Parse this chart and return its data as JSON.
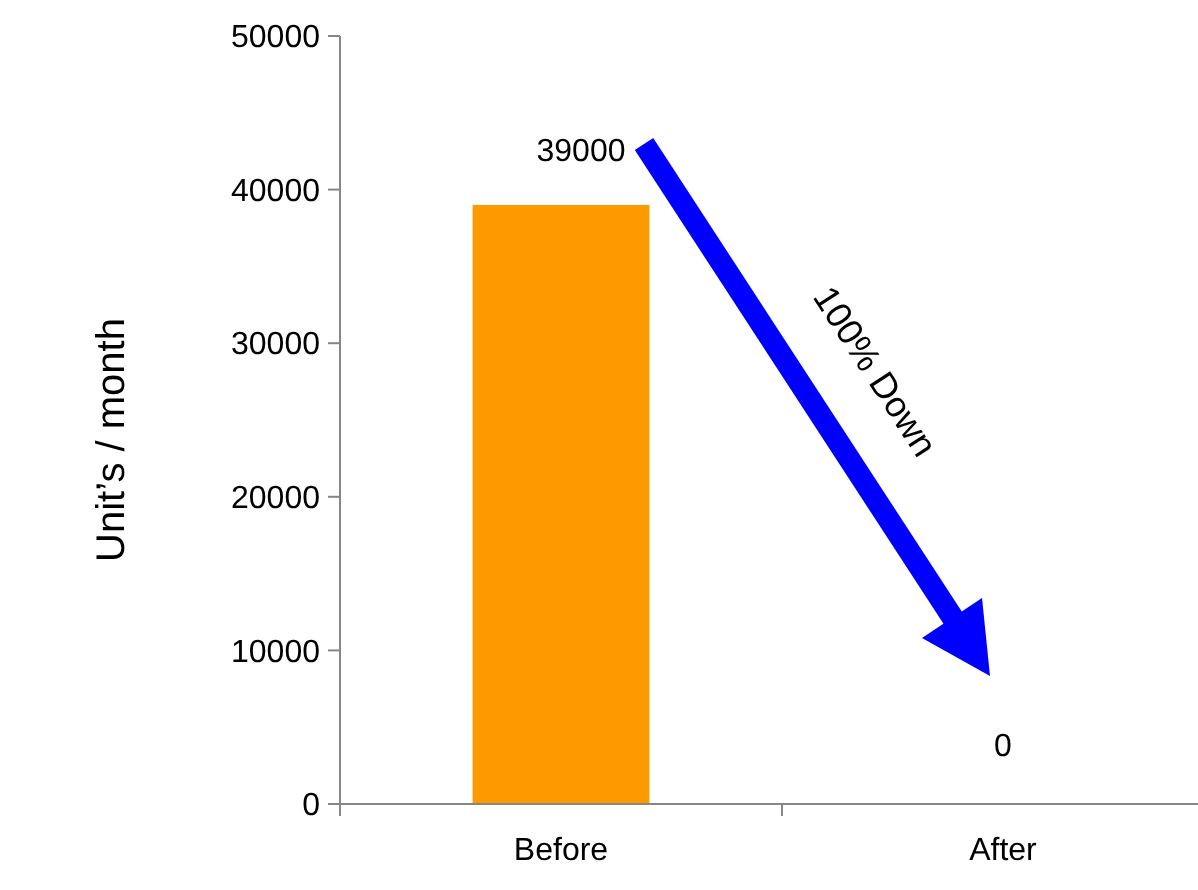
{
  "chart_data": {
    "type": "bar",
    "ylabel": "Unit’s / month",
    "categories": [
      "Before",
      "After"
    ],
    "values": [
      39000,
      0
    ],
    "color": "#ff9900",
    "ylim": [
      0,
      50000
    ],
    "yticks": [
      0,
      10000,
      20000,
      30000,
      40000,
      50000
    ],
    "data_labels": true,
    "annotations": [
      "100% Down"
    ]
  }
}
